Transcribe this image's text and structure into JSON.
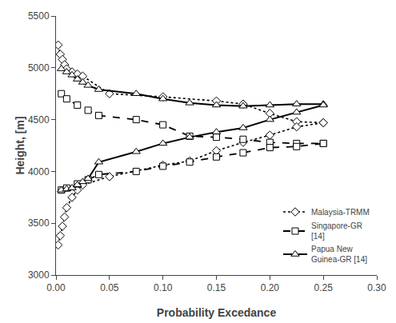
{
  "chart_data": {
    "type": "line",
    "xlabel": "Probability Excedance",
    "ylabel": "Height, [m]",
    "xlim": [
      0,
      0.3
    ],
    "ylim": [
      3000,
      5500
    ],
    "xticks": [
      {
        "value": 0,
        "label": "0.00"
      },
      0.05,
      {
        "value": 0.1,
        "label": "0.10"
      },
      0.15,
      {
        "value": 0.2,
        "label": "0.20"
      },
      0.25,
      {
        "value": 0.3,
        "label": "0.30"
      }
    ],
    "yticks": [
      3000,
      3500,
      4000,
      4500,
      5000,
      5500
    ],
    "grid": false,
    "legend": "lower right",
    "series": [
      {
        "name": "Malaysia-TRMM",
        "color": "#000000",
        "line_style": "dotted",
        "marker": "diamond",
        "x": [
          0.002,
          0.004,
          0.006,
          0.008,
          0.01,
          0.015,
          0.02,
          0.025,
          0.05,
          0.1,
          0.15,
          0.175,
          0.2,
          0.225,
          0.25
        ],
        "values": [
          5220,
          5130,
          5080,
          5030,
          4990,
          4960,
          4940,
          4920,
          4750,
          4720,
          4680,
          4650,
          4560,
          4480,
          4470
        ]
      },
      {
        "color": "#000000",
        "line_style": "dotted",
        "marker": "diamond",
        "x": [
          0.002,
          0.004,
          0.006,
          0.008,
          0.01,
          0.015,
          0.02,
          0.025,
          0.05,
          0.1,
          0.125,
          0.15,
          0.175,
          0.2,
          0.225,
          0.25
        ],
        "values": [
          3290,
          3380,
          3470,
          3560,
          3650,
          3750,
          3820,
          3870,
          3950,
          4060,
          4100,
          4200,
          4280,
          4350,
          4430,
          4470
        ]
      },
      {
        "name": "Singapore-GR\n[14]",
        "color": "#000000",
        "line_style": "dashed",
        "marker": "square",
        "x": [
          0.005,
          0.01,
          0.02,
          0.03,
          0.04,
          0.075,
          0.1,
          0.125,
          0.15,
          0.175,
          0.2,
          0.225,
          0.25
        ],
        "values": [
          4750,
          4700,
          4640,
          4590,
          4540,
          4500,
          4450,
          4340,
          4330,
          4310,
          4280,
          4270,
          4270
        ]
      },
      {
        "color": "#000000",
        "line_style": "dashed",
        "marker": "square",
        "x": [
          0.005,
          0.01,
          0.02,
          0.03,
          0.04,
          0.075,
          0.1,
          0.125,
          0.15,
          0.175,
          0.2,
          0.225,
          0.25
        ],
        "values": [
          3820,
          3840,
          3880,
          3920,
          3970,
          4000,
          4050,
          4090,
          4140,
          4180,
          4230,
          4240,
          4270
        ]
      },
      {
        "name": "Papua New\nGuinea-GR [14]",
        "color": "#000000",
        "line_style": "solid",
        "marker": "triangle-up",
        "x": [
          0.005,
          0.01,
          0.015,
          0.02,
          0.025,
          0.03,
          0.04,
          0.075,
          0.1,
          0.125,
          0.15,
          0.175,
          0.2,
          0.225,
          0.25
        ],
        "values": [
          4990,
          4960,
          4930,
          4890,
          4860,
          4830,
          4790,
          4750,
          4700,
          4660,
          4640,
          4630,
          4640,
          4650,
          4650
        ]
      },
      {
        "color": "#000000",
        "line_style": "solid",
        "marker": "triangle-up",
        "x": [
          0.005,
          0.01,
          0.015,
          0.02,
          0.025,
          0.03,
          0.04,
          0.075,
          0.1,
          0.125,
          0.15,
          0.175,
          0.2,
          0.225,
          0.25
        ],
        "values": [
          3820,
          3830,
          3840,
          3870,
          3900,
          3930,
          4090,
          4190,
          4270,
          4330,
          4380,
          4420,
          4500,
          4570,
          4640
        ]
      }
    ]
  }
}
